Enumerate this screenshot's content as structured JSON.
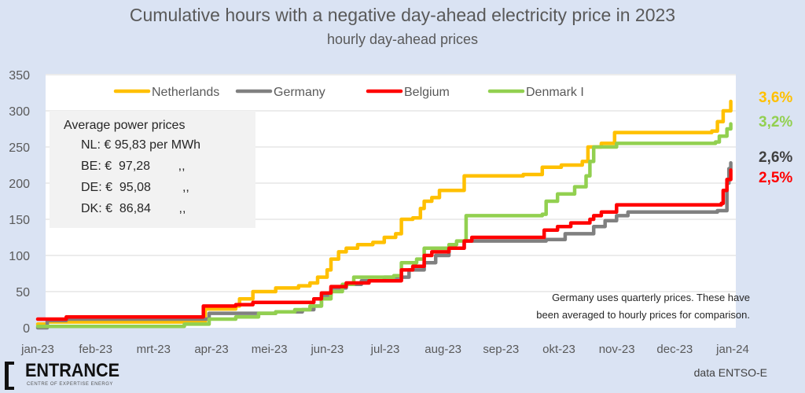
{
  "title": "Cumulative hours with a negative day-ahead electricity price in 2023",
  "subtitle": "hourly day-ahead prices",
  "avg_box": {
    "heading": "Average power prices",
    "rows": [
      {
        "label": "NL: €  95,83 per MWh"
      },
      {
        "label": "BE: €  97,28        ,,"
      },
      {
        "label": "DE: €  95,08         ,,"
      },
      {
        "label": "DK: €  86,84        ,,"
      }
    ]
  },
  "end_labels": [
    {
      "text": "3,6%",
      "color": "#ffc000"
    },
    {
      "text": "3,2%",
      "color": "#92d050"
    },
    {
      "text": "2,6%",
      "color": "#404040"
    },
    {
      "text": "2,5%",
      "color": "#ff0000"
    }
  ],
  "note": [
    "Germany uses quarterly prices. These have",
    "been averaged to hourly prices for comparison."
  ],
  "logo": {
    "name": "ENTRANCE",
    "tagline": "CENTRE OF EXPERTISE ENERGY"
  },
  "source": "data ENTSO-E",
  "chart_data": {
    "type": "line",
    "step": true,
    "title": "Cumulative hours with a negative day-ahead electricity price in 2023",
    "subtitle": "hourly day-ahead prices",
    "xlabel": "",
    "ylabel": "",
    "xlim": [
      "2023-01-01",
      "2024-01-01"
    ],
    "ylim": [
      0,
      350
    ],
    "yticks": [
      0,
      50,
      100,
      150,
      200,
      250,
      300,
      350
    ],
    "xtick_labels": [
      "jan-23",
      "feb-23",
      "mrt-23",
      "apr-23",
      "mei-23",
      "jun-23",
      "jul-23",
      "aug-23",
      "sep-23",
      "okt-23",
      "nov-23",
      "dec-23",
      "jan-24"
    ],
    "grid": true,
    "legend": "top",
    "series": [
      {
        "name": "Netherlands",
        "color": "#ffc000",
        "points": [
          [
            "2023-01-01",
            5
          ],
          [
            "2023-01-06",
            8
          ],
          [
            "2023-03-30",
            26
          ],
          [
            "2023-04-15",
            30
          ],
          [
            "2023-04-17",
            40
          ],
          [
            "2023-04-24",
            50
          ],
          [
            "2023-05-06",
            55
          ],
          [
            "2023-05-18",
            58
          ],
          [
            "2023-05-24",
            62
          ],
          [
            "2023-05-28",
            70
          ],
          [
            "2023-06-02",
            80
          ],
          [
            "2023-06-04",
            95
          ],
          [
            "2023-06-08",
            105
          ],
          [
            "2023-06-12",
            110
          ],
          [
            "2023-06-18",
            115
          ],
          [
            "2023-06-26",
            118
          ],
          [
            "2023-07-02",
            125
          ],
          [
            "2023-07-08",
            130
          ],
          [
            "2023-07-11",
            150
          ],
          [
            "2023-07-17",
            152
          ],
          [
            "2023-07-21",
            165
          ],
          [
            "2023-07-23",
            175
          ],
          [
            "2023-07-27",
            180
          ],
          [
            "2023-07-31",
            190
          ],
          [
            "2023-08-13",
            210
          ],
          [
            "2023-09-13",
            212
          ],
          [
            "2023-09-23",
            222
          ],
          [
            "2023-10-03",
            225
          ],
          [
            "2023-10-14",
            230
          ],
          [
            "2023-10-17",
            250
          ],
          [
            "2023-10-24",
            255
          ],
          [
            "2023-10-31",
            270
          ],
          [
            "2023-12-21",
            272
          ],
          [
            "2023-12-24",
            285
          ],
          [
            "2023-12-27",
            300
          ],
          [
            "2023-12-31",
            313
          ]
        ]
      },
      {
        "name": "Germany",
        "color": "#808080",
        "points": [
          [
            "2023-01-01",
            0
          ],
          [
            "2023-01-06",
            10
          ],
          [
            "2023-01-16",
            12
          ],
          [
            "2023-04-01",
            20
          ],
          [
            "2023-05-06",
            22
          ],
          [
            "2023-05-20",
            25
          ],
          [
            "2023-05-26",
            30
          ],
          [
            "2023-05-30",
            45
          ],
          [
            "2023-06-04",
            55
          ],
          [
            "2023-06-12",
            60
          ],
          [
            "2023-06-20",
            65
          ],
          [
            "2023-07-02",
            70
          ],
          [
            "2023-07-15",
            80
          ],
          [
            "2023-07-23",
            90
          ],
          [
            "2023-07-29",
            100
          ],
          [
            "2023-08-05",
            110
          ],
          [
            "2023-08-13",
            120
          ],
          [
            "2023-09-25",
            122
          ],
          [
            "2023-10-05",
            130
          ],
          [
            "2023-10-20",
            140
          ],
          [
            "2023-10-26",
            148
          ],
          [
            "2023-11-01",
            155
          ],
          [
            "2023-11-07",
            160
          ],
          [
            "2023-12-24",
            162
          ],
          [
            "2023-12-29",
            200
          ],
          [
            "2023-12-30",
            220
          ],
          [
            "2023-12-31",
            228
          ]
        ]
      },
      {
        "name": "Belgium",
        "color": "#ff0000",
        "points": [
          [
            "2023-01-01",
            12
          ],
          [
            "2023-01-16",
            15
          ],
          [
            "2023-03-29",
            30
          ],
          [
            "2023-04-15",
            32
          ],
          [
            "2023-04-24",
            35
          ],
          [
            "2023-05-26",
            40
          ],
          [
            "2023-05-30",
            48
          ],
          [
            "2023-06-04",
            57
          ],
          [
            "2023-06-12",
            62
          ],
          [
            "2023-06-24",
            65
          ],
          [
            "2023-07-11",
            80
          ],
          [
            "2023-07-17",
            85
          ],
          [
            "2023-07-23",
            100
          ],
          [
            "2023-07-27",
            105
          ],
          [
            "2023-08-05",
            110
          ],
          [
            "2023-08-13",
            120
          ],
          [
            "2023-08-17",
            125
          ],
          [
            "2023-09-24",
            135
          ],
          [
            "2023-10-01",
            140
          ],
          [
            "2023-10-08",
            145
          ],
          [
            "2023-10-18",
            150
          ],
          [
            "2023-10-20",
            155
          ],
          [
            "2023-10-24",
            160
          ],
          [
            "2023-11-01",
            170
          ],
          [
            "2023-12-26",
            172
          ],
          [
            "2023-12-27",
            190
          ],
          [
            "2023-12-29",
            205
          ],
          [
            "2023-12-31",
            218
          ]
        ]
      },
      {
        "name": "Denmark I",
        "color": "#92d050",
        "points": [
          [
            "2023-01-01",
            2
          ],
          [
            "2023-03-19",
            5
          ],
          [
            "2023-04-01",
            12
          ],
          [
            "2023-04-15",
            15
          ],
          [
            "2023-04-27",
            20
          ],
          [
            "2023-05-06",
            22
          ],
          [
            "2023-05-16",
            25
          ],
          [
            "2023-05-24",
            30
          ],
          [
            "2023-05-30",
            40
          ],
          [
            "2023-06-04",
            50
          ],
          [
            "2023-06-10",
            60
          ],
          [
            "2023-06-16",
            70
          ],
          [
            "2023-07-07",
            72
          ],
          [
            "2023-07-11",
            90
          ],
          [
            "2023-07-19",
            95
          ],
          [
            "2023-07-23",
            110
          ],
          [
            "2023-08-05",
            115
          ],
          [
            "2023-08-09",
            120
          ],
          [
            "2023-08-14",
            155
          ],
          [
            "2023-09-23",
            157
          ],
          [
            "2023-09-25",
            175
          ],
          [
            "2023-10-01",
            185
          ],
          [
            "2023-10-10",
            195
          ],
          [
            "2023-10-16",
            210
          ],
          [
            "2023-10-18",
            230
          ],
          [
            "2023-10-20",
            250
          ],
          [
            "2023-11-01",
            255
          ],
          [
            "2023-12-23",
            257
          ],
          [
            "2023-12-25",
            265
          ],
          [
            "2023-12-29",
            275
          ],
          [
            "2023-12-31",
            282
          ]
        ]
      }
    ]
  }
}
